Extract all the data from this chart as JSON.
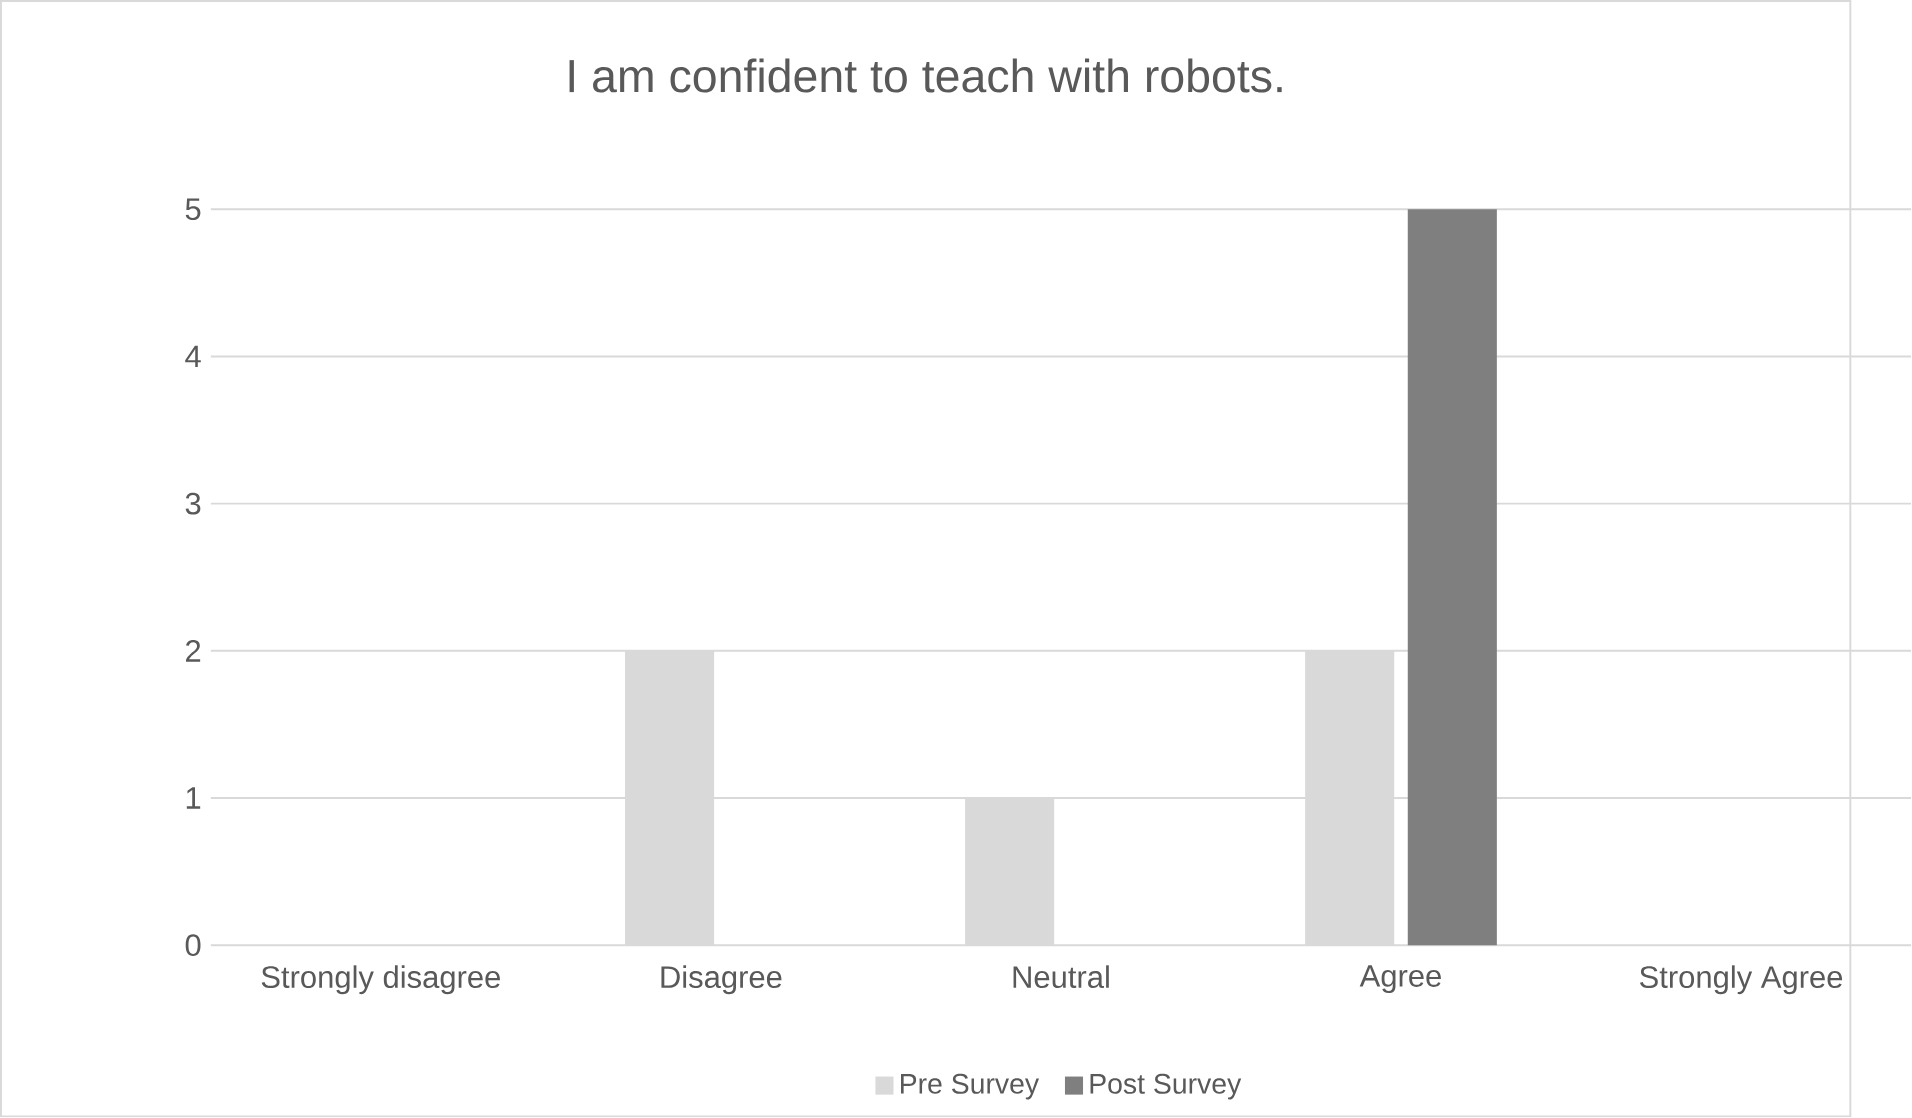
{
  "chart_data": {
    "type": "bar",
    "title": "I am confident to teach with robots.",
    "categories": [
      "Strongly disagree",
      "Disagree",
      "Neutral",
      "Agree",
      "Strongly Agree"
    ],
    "series": [
      {
        "name": "Pre Survey",
        "color": "#d9d9d9",
        "values": [
          0,
          2,
          1,
          2,
          0
        ]
      },
      {
        "name": "Post Survey",
        "color": "#7f7f7f",
        "values": [
          0,
          0,
          0,
          5,
          0
        ]
      }
    ],
    "ylim": [
      0,
      5
    ],
    "yticks": [
      0,
      1,
      2,
      3,
      4,
      5
    ],
    "grid": "y",
    "legend": "bottom"
  }
}
